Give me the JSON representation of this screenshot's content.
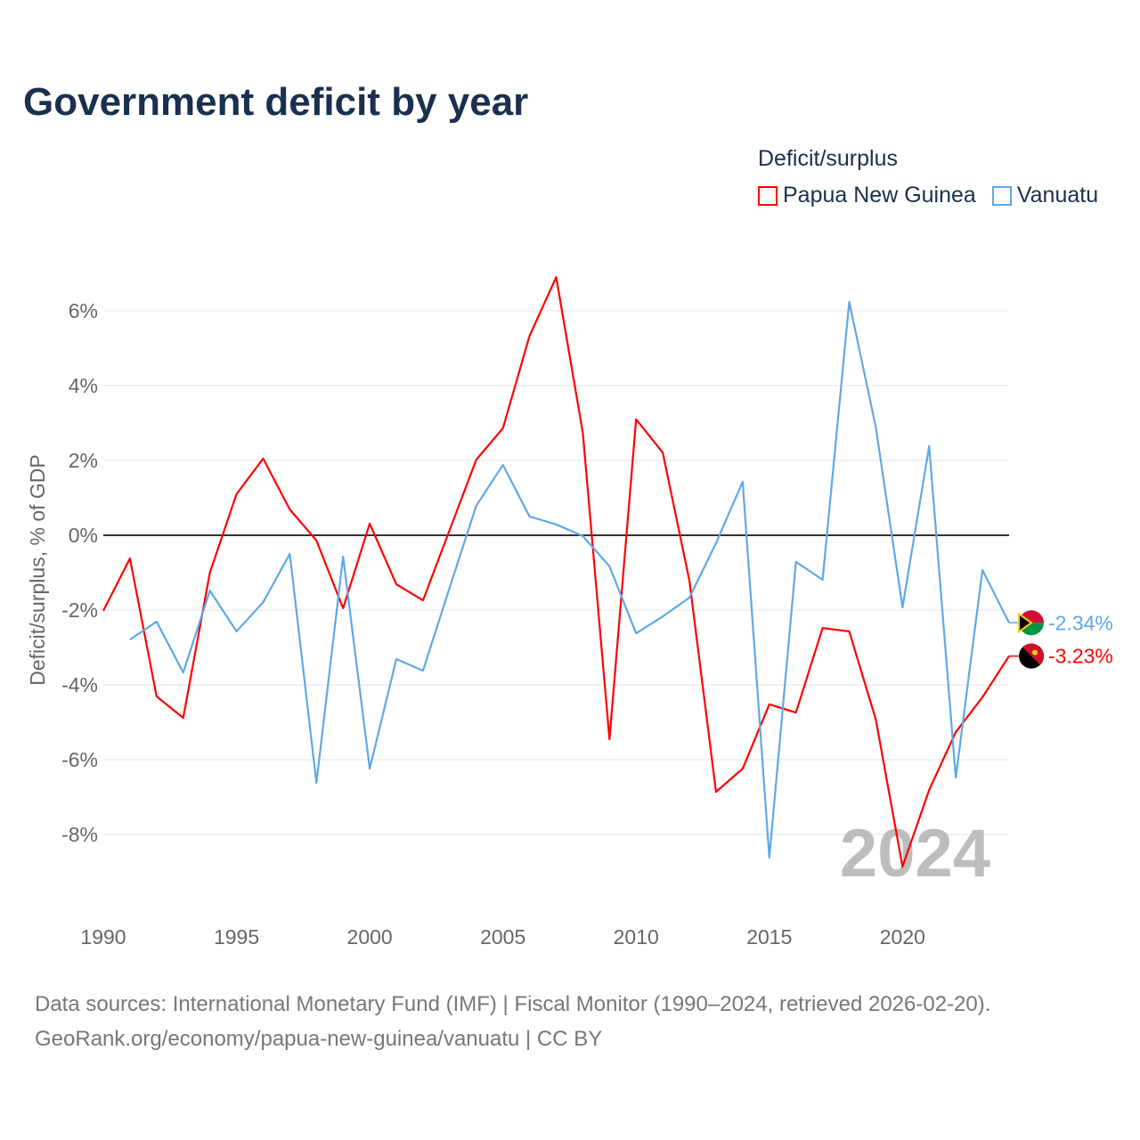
{
  "title": "Government deficit by year",
  "legend": {
    "title": "Deficit/surplus",
    "items": [
      {
        "label": "Papua New Guinea",
        "color": "#ff0000"
      },
      {
        "label": "Vanuatu",
        "color": "#5fa8e8"
      }
    ]
  },
  "source": {
    "line1": "Data sources: International Monetary Fund (IMF) | Fiscal Monitor (1990–2024, retrieved 2026-02-20).",
    "line2": "GeoRank.org/economy/papua-new-guinea/vanuatu | CC BY"
  },
  "chart_data": {
    "type": "line",
    "title": "Government deficit by year",
    "xlabel": "",
    "ylabel": "Deficit/surplus, % of GDP",
    "xlim": [
      1990,
      2024
    ],
    "ylim": [
      -10,
      7.5
    ],
    "xticks": [
      {
        "v": 1990,
        "label": "1990"
      },
      {
        "v": 1995,
        "label": "1995"
      },
      {
        "v": 2000,
        "label": "2000"
      },
      {
        "v": 2005,
        "label": "2005"
      },
      {
        "v": 2010,
        "label": "2010"
      },
      {
        "v": 2015,
        "label": "2015"
      },
      {
        "v": 2020,
        "label": "2020"
      }
    ],
    "yticks": [
      {
        "v": 6,
        "label": "6%"
      },
      {
        "v": 4,
        "label": "4%"
      },
      {
        "v": 2,
        "label": "2%"
      },
      {
        "v": 0,
        "label": "0%"
      },
      {
        "v": -2,
        "label": "-2%"
      },
      {
        "v": -4,
        "label": "-4%"
      },
      {
        "v": -6,
        "label": "-6%"
      },
      {
        "v": -8,
        "label": "-8%"
      }
    ],
    "watermark": "2024",
    "grid": true,
    "legend_position": "top-right",
    "series": [
      {
        "name": "Papua New Guinea",
        "color": "#ff0000",
        "end_label": "-3.23%",
        "flag": "papua-new-guinea",
        "x": [
          1990,
          1991,
          1992,
          1993,
          1994,
          1995,
          1996,
          1997,
          1998,
          1999,
          2000,
          2001,
          2002,
          2003,
          2004,
          2005,
          2006,
          2007,
          2008,
          2009,
          2010,
          2011,
          2012,
          2013,
          2014,
          2015,
          2016,
          2017,
          2018,
          2019,
          2020,
          2021,
          2022,
          2023,
          2024
        ],
        "values": [
          -2.02,
          -0.62,
          -4.31,
          -4.88,
          -1.0,
          1.1,
          2.05,
          0.69,
          -0.14,
          -1.95,
          0.31,
          -1.31,
          -1.74,
          0.14,
          2.02,
          2.86,
          5.33,
          6.9,
          2.74,
          -5.45,
          3.1,
          2.21,
          -1.21,
          -6.86,
          -6.24,
          -4.52,
          -4.74,
          -2.48,
          -2.57,
          -4.93,
          -8.86,
          -6.81,
          -5.26,
          -4.33,
          -3.23
        ]
      },
      {
        "name": "Vanuatu",
        "color": "#5fa8e8",
        "end_label": "-2.34%",
        "flag": "vanuatu",
        "x": [
          1991,
          1992,
          1993,
          1994,
          1995,
          1996,
          1997,
          1998,
          1999,
          2000,
          2001,
          2002,
          2003,
          2004,
          2005,
          2006,
          2007,
          2008,
          2009,
          2010,
          2011,
          2012,
          2013,
          2014,
          2015,
          2016,
          2017,
          2018,
          2019,
          2020,
          2021,
          2022,
          2023,
          2024
        ],
        "values": [
          -2.79,
          -2.31,
          -3.67,
          -1.48,
          -2.57,
          -1.79,
          -0.5,
          -6.62,
          -0.57,
          -6.24,
          -3.31,
          -3.62,
          -1.4,
          0.79,
          1.88,
          0.5,
          0.29,
          -0.02,
          -0.83,
          -2.62,
          -2.17,
          -1.67,
          -0.21,
          1.43,
          -8.62,
          -0.71,
          -1.19,
          6.24,
          2.88,
          -1.93,
          2.38,
          -6.48,
          -0.93,
          -2.34
        ]
      }
    ]
  }
}
